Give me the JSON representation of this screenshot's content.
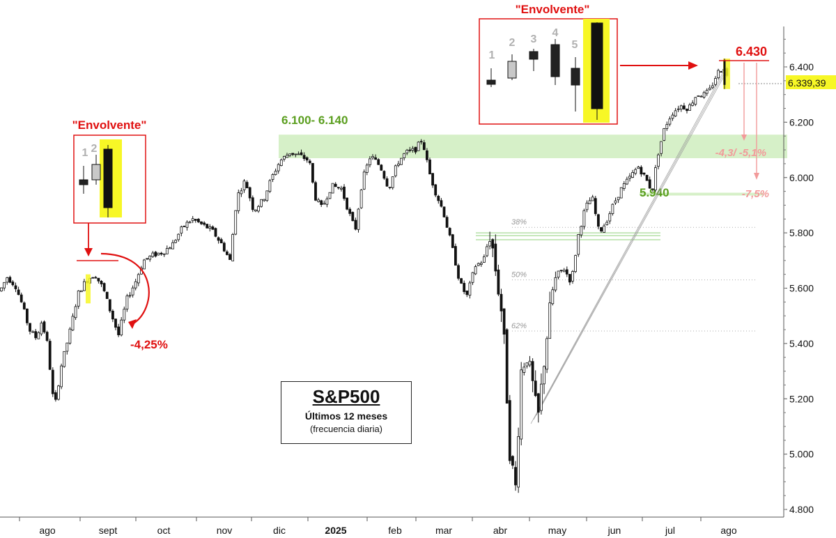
{
  "chart_data": {
    "type": "candlestick",
    "title": "S&P500",
    "subtitle": "Últimos 12 meses",
    "subtitle2": "(frecuencia diaria)",
    "y_axis": {
      "ylim": [
        4780,
        6560
      ],
      "ticks": [
        4800,
        5000,
        5200,
        5400,
        5600,
        5800,
        6000,
        6200,
        6400
      ],
      "tick_labels": [
        "4.800",
        "5.000",
        "5.200",
        "5.400",
        "5.600",
        "5.800",
        "6.000",
        "6.200",
        "6.400"
      ],
      "position": "right"
    },
    "x_axis": {
      "month_labels": [
        "ago",
        "sept",
        "oct",
        "nov",
        "dic",
        "2025",
        "feb",
        "mar",
        "abr",
        "may",
        "jun",
        "jul",
        "ago"
      ]
    },
    "series": [
      {
        "path": [
          [
            0,
            5590
          ],
          [
            10,
            5640
          ],
          [
            22,
            5610
          ],
          [
            32,
            5540
          ],
          [
            42,
            5450
          ],
          [
            52,
            5420
          ],
          [
            60,
            5480
          ],
          [
            68,
            5400
          ],
          [
            78,
            5160
          ],
          [
            88,
            5320
          ],
          [
            100,
            5440
          ],
          [
            112,
            5580
          ],
          [
            124,
            5630
          ],
          [
            136,
            5650
          ],
          [
            148,
            5600
          ],
          [
            158,
            5520
          ],
          [
            170,
            5430
          ],
          [
            182,
            5560
          ],
          [
            194,
            5620
          ],
          [
            206,
            5700
          ],
          [
            220,
            5720
          ],
          [
            234,
            5730
          ],
          [
            248,
            5760
          ],
          [
            262,
            5820
          ],
          [
            276,
            5850
          ],
          [
            290,
            5830
          ],
          [
            304,
            5810
          ],
          [
            318,
            5760
          ],
          [
            330,
            5700
          ],
          [
            340,
            5930
          ],
          [
            352,
            5990
          ],
          [
            364,
            5880
          ],
          [
            378,
            5920
          ],
          [
            390,
            6000
          ],
          [
            402,
            6060
          ],
          [
            416,
            6090
          ],
          [
            430,
            6080
          ],
          [
            444,
            6060
          ],
          [
            452,
            5930
          ],
          [
            462,
            5890
          ],
          [
            476,
            5970
          ],
          [
            490,
            5960
          ],
          [
            500,
            5880
          ],
          [
            510,
            5810
          ],
          [
            520,
            5990
          ],
          [
            532,
            6080
          ],
          [
            546,
            6040
          ],
          [
            558,
            5960
          ],
          [
            570,
            6050
          ],
          [
            582,
            6090
          ],
          [
            596,
            6100
          ],
          [
            606,
            6140
          ],
          [
            616,
            6020
          ],
          [
            626,
            5940
          ],
          [
            636,
            5880
          ],
          [
            648,
            5760
          ],
          [
            660,
            5620
          ],
          [
            670,
            5570
          ],
          [
            682,
            5680
          ],
          [
            694,
            5700
          ],
          [
            704,
            5800
          ],
          [
            714,
            5620
          ],
          [
            722,
            5480
          ],
          [
            732,
            5000
          ],
          [
            740,
            4880
          ],
          [
            748,
            5300
          ],
          [
            756,
            5360
          ],
          [
            764,
            5260
          ],
          [
            772,
            5120
          ],
          [
            782,
            5360
          ],
          [
            792,
            5580
          ],
          [
            800,
            5650
          ],
          [
            810,
            5670
          ],
          [
            820,
            5620
          ],
          [
            830,
            5790
          ],
          [
            840,
            5890
          ],
          [
            850,
            5930
          ],
          [
            860,
            5800
          ],
          [
            870,
            5840
          ],
          [
            880,
            5900
          ],
          [
            892,
            5960
          ],
          [
            904,
            6000
          ],
          [
            916,
            6040
          ],
          [
            926,
            6000
          ],
          [
            936,
            5950
          ],
          [
            944,
            6080
          ],
          [
            954,
            6180
          ],
          [
            964,
            6230
          ],
          [
            976,
            6260
          ],
          [
            988,
            6250
          ],
          [
            1000,
            6300
          ],
          [
            1012,
            6300
          ],
          [
            1020,
            6320
          ],
          [
            1030,
            6380
          ],
          [
            1040,
            6400
          ],
          [
            1046,
            6339
          ]
        ],
        "values_note": "approximate daily closes"
      }
    ],
    "last_price_label": "6.339,39",
    "last_price": 6339.39,
    "resistance_zone": {
      "label": "6.100- 6.140",
      "low": 6100,
      "high": 6140
    },
    "support_level": {
      "label": "5.940",
      "value": 5940
    },
    "high_level": {
      "label": "6.430",
      "value": 6430
    },
    "fibonacci": [
      {
        "label": "38%",
        "value": 5820
      },
      {
        "label": "50%",
        "value": 5630
      },
      {
        "label": "62%",
        "value": 5445
      }
    ],
    "annotations": {
      "engulfing_left_label": "\"Envolvente\"",
      "engulfing_right_label": "\"Envolvente\"",
      "left_drop_label": "-4,25%",
      "target_1_label": "-4,3/ -5,1%",
      "target_2_label": "-7,5%",
      "left_numbers": [
        "1",
        "2"
      ],
      "right_numbers": [
        "1",
        "2",
        "3",
        "4",
        "5"
      ]
    },
    "colors": {
      "candle_up": "#ffffff",
      "candle_down": "#111111",
      "highlight": "#f7f726",
      "annotation_red": "#e01010",
      "annotation_green": "#5a9e1e",
      "zone_green": "#d6f0c8",
      "target_pink": "#f29a9a"
    },
    "grid": false
  }
}
